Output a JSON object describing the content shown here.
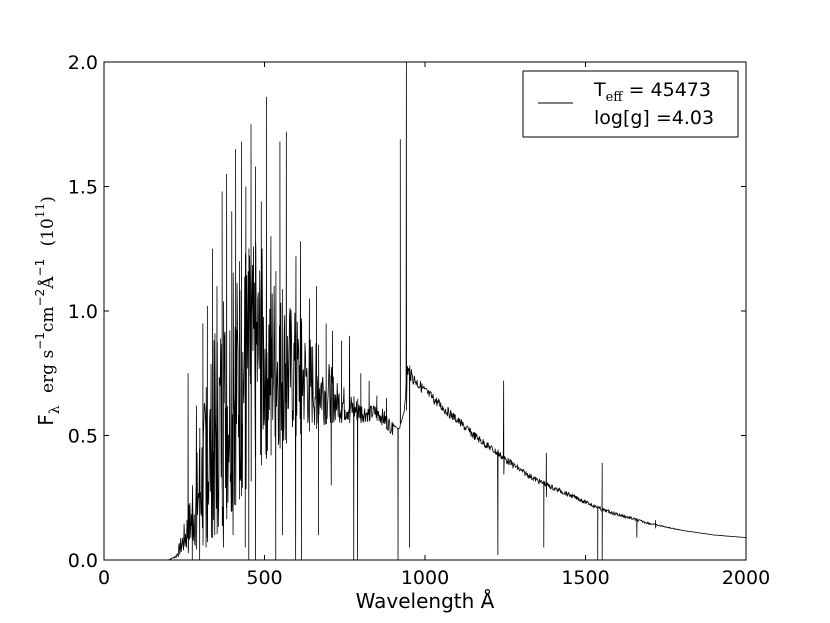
{
  "chart_data": {
    "type": "line",
    "title": "",
    "xlabel": "Wavelength Å",
    "ylabel": {
      "f": "F",
      "lambda": "λ",
      "units": "erg s",
      "exp1": "−1",
      "cm": "cm",
      "exp2": "−2",
      "angstrom": "Å",
      "exp3": "−1",
      "scale_open": "(10",
      "scale_exp": "11",
      "scale_close": ")"
    },
    "xlim": [
      0,
      2000
    ],
    "ylim": [
      0.0,
      2.0
    ],
    "x_ticks": [
      0,
      500,
      1000,
      1500,
      2000
    ],
    "x_tick_labels": [
      "0",
      "500",
      "1000",
      "1500",
      "2000"
    ],
    "y_ticks": [
      0.0,
      0.5,
      1.0,
      1.5,
      2.0
    ],
    "y_tick_labels": [
      "0.0",
      "0.5",
      "1.0",
      "1.5",
      "2.0"
    ],
    "grid": false,
    "legend": {
      "placement": "top-right",
      "line1": {
        "t": "T",
        "sub": "eff",
        "rest": " = 45473"
      },
      "line2": "log[g] =4.03"
    },
    "series": [
      {
        "color": "#000000",
        "envelope": [
          [
            200,
            0.0
          ],
          [
            225,
            0.02
          ],
          [
            250,
            0.15
          ],
          [
            275,
            0.3
          ],
          [
            300,
            0.55
          ],
          [
            325,
            0.75
          ],
          [
            350,
            0.95
          ],
          [
            375,
            1.05
          ],
          [
            400,
            1.15
          ],
          [
            425,
            1.2
          ],
          [
            450,
            1.25
          ],
          [
            475,
            1.28
          ],
          [
            500,
            1.25
          ],
          [
            525,
            1.2
          ],
          [
            550,
            1.1
          ],
          [
            575,
            1.05
          ],
          [
            600,
            1.0
          ],
          [
            625,
            0.95
          ],
          [
            650,
            0.9
          ],
          [
            675,
            0.85
          ],
          [
            700,
            0.8
          ],
          [
            725,
            0.72
          ],
          [
            750,
            0.7
          ],
          [
            775,
            0.66
          ],
          [
            800,
            0.64
          ],
          [
            825,
            0.62
          ],
          [
            850,
            0.63
          ],
          [
            875,
            0.6
          ],
          [
            900,
            0.55
          ],
          [
            920,
            0.52
          ],
          [
            935,
            0.6
          ],
          [
            945,
            0.8
          ],
          [
            960,
            0.76
          ],
          [
            1000,
            0.7
          ],
          [
            1050,
            0.64
          ],
          [
            1100,
            0.58
          ],
          [
            1150,
            0.52
          ],
          [
            1200,
            0.47
          ],
          [
            1250,
            0.42
          ],
          [
            1300,
            0.37
          ],
          [
            1350,
            0.33
          ],
          [
            1400,
            0.3
          ],
          [
            1450,
            0.27
          ],
          [
            1500,
            0.24
          ],
          [
            1550,
            0.21
          ],
          [
            1600,
            0.19
          ],
          [
            1650,
            0.17
          ],
          [
            1700,
            0.15
          ],
          [
            1750,
            0.135
          ],
          [
            1800,
            0.12
          ],
          [
            1850,
            0.11
          ],
          [
            1900,
            0.1
          ],
          [
            1950,
            0.095
          ],
          [
            2000,
            0.09
          ]
        ],
        "lower_envelope": [
          [
            200,
            0.0
          ],
          [
            250,
            0.02
          ],
          [
            300,
            0.05
          ],
          [
            350,
            0.1
          ],
          [
            400,
            0.2
          ],
          [
            450,
            0.3
          ],
          [
            500,
            0.4
          ],
          [
            550,
            0.45
          ],
          [
            600,
            0.5
          ],
          [
            650,
            0.52
          ],
          [
            700,
            0.55
          ],
          [
            750,
            0.55
          ],
          [
            800,
            0.55
          ],
          [
            850,
            0.56
          ],
          [
            900,
            0.5
          ],
          [
            950,
            0.62
          ],
          [
            1000,
            0.58
          ],
          [
            1050,
            0.52
          ],
          [
            1100,
            0.48
          ],
          [
            1150,
            0.42
          ],
          [
            1200,
            0.38
          ],
          [
            1250,
            0.34
          ],
          [
            1300,
            0.3
          ],
          [
            1350,
            0.27
          ],
          [
            1400,
            0.24
          ],
          [
            1450,
            0.22
          ],
          [
            1500,
            0.2
          ],
          [
            1550,
            0.17
          ],
          [
            1600,
            0.15
          ],
          [
            1700,
            0.13
          ],
          [
            1800,
            0.115
          ],
          [
            2000,
            0.09
          ]
        ],
        "spikes": [
          [
            262,
            0.75
          ],
          [
            288,
            0.62
          ],
          [
            308,
            0.95
          ],
          [
            322,
            1.02
          ],
          [
            338,
            1.25
          ],
          [
            352,
            1.1
          ],
          [
            368,
            1.48
          ],
          [
            382,
            1.55
          ],
          [
            398,
            1.4
          ],
          [
            410,
            1.65
          ],
          [
            422,
            1.2
          ],
          [
            428,
            1.68
          ],
          [
            442,
            1.5
          ],
          [
            458,
            1.75
          ],
          [
            472,
            1.58
          ],
          [
            490,
            1.44
          ],
          [
            506,
            1.86
          ],
          [
            520,
            1.3
          ],
          [
            548,
            1.68
          ],
          [
            568,
            1.72
          ],
          [
            598,
            1.22
          ],
          [
            612,
            1.28
          ],
          [
            640,
            1.05
          ],
          [
            662,
            1.1
          ],
          [
            692,
            0.95
          ],
          [
            712,
            0.92
          ],
          [
            740,
            0.88
          ],
          [
            765,
            0.9
          ],
          [
            800,
            0.75
          ],
          [
            826,
            0.72
          ],
          [
            850,
            0.66
          ],
          [
            880,
            0.65
          ],
          [
            923,
            1.69
          ],
          [
            942,
            2.0
          ],
          [
            1245,
            0.72
          ],
          [
            1378,
            0.43
          ],
          [
            1552,
            0.39
          ],
          [
            1718,
            0.16
          ]
        ],
        "dips": [
          [
            275,
            0.0
          ],
          [
            298,
            0.0
          ],
          [
            318,
            0.05
          ],
          [
            345,
            0.1
          ],
          [
            372,
            0.05
          ],
          [
            402,
            0.1
          ],
          [
            440,
            0.05
          ],
          [
            451,
            0.0
          ],
          [
            472,
            0.0
          ],
          [
            535,
            0.0
          ],
          [
            556,
            0.1
          ],
          [
            597,
            0.0
          ],
          [
            615,
            0.0
          ],
          [
            668,
            0.1
          ],
          [
            708,
            0.3
          ],
          [
            778,
            0.0
          ],
          [
            790,
            0.0
          ],
          [
            916,
            0.0
          ],
          [
            952,
            0.05
          ],
          [
            1227,
            0.02
          ],
          [
            1370,
            0.05
          ],
          [
            1538,
            0.0
          ],
          [
            1552,
            0.0
          ],
          [
            1660,
            0.09
          ]
        ]
      }
    ]
  }
}
